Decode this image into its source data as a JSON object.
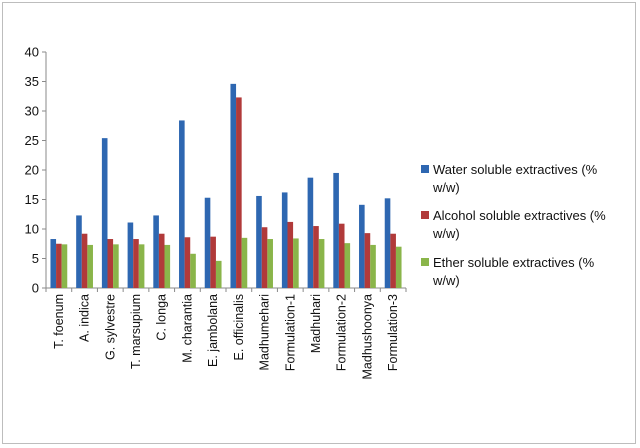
{
  "chart_data": {
    "type": "bar",
    "title": "",
    "xlabel": "",
    "ylabel": "",
    "ylim": [
      0,
      40
    ],
    "yticks": [
      0,
      5,
      10,
      15,
      20,
      25,
      30,
      35,
      40
    ],
    "grid": false,
    "legend_position": "right",
    "categories": [
      "T. foenum",
      "A. indica",
      "G. sylvestre",
      "T. marsupium",
      "C. longa",
      "M. charantia",
      "E. jambolana",
      "E. officinalis",
      "Madhumehari",
      "Formulation-1",
      "Madhuhari",
      "Formulation-2",
      "Madhushoonya",
      "Formulation-3"
    ],
    "series": [
      {
        "name": "Water soluble extractives  (% w/w)",
        "legend_lines": [
          "Water soluble extractives  (%",
          "w/w)"
        ],
        "color": "#2e67b1",
        "values": [
          8.3,
          12.3,
          25.4,
          11.1,
          12.3,
          28.4,
          15.3,
          34.6,
          15.6,
          16.2,
          18.7,
          19.5,
          14.1,
          15.2
        ]
      },
      {
        "name": "Alcohol soluble extractives (% w/w)",
        "legend_lines": [
          "Alcohol soluble extractives (%",
          "w/w)"
        ],
        "color": "#b13a3a",
        "values": [
          7.5,
          9.2,
          8.3,
          8.3,
          9.2,
          8.6,
          8.7,
          32.3,
          10.3,
          11.2,
          10.5,
          10.9,
          9.3,
          9.2
        ]
      },
      {
        "name": "Ether soluble extractives (% w/w)",
        "legend_lines": [
          "Ether soluble extractives (%",
          "w/w)"
        ],
        "color": "#8ab54a",
        "values": [
          7.4,
          7.3,
          7.4,
          7.4,
          7.3,
          5.8,
          4.6,
          8.5,
          8.3,
          8.4,
          8.3,
          7.6,
          7.3,
          7.0
        ]
      }
    ]
  }
}
